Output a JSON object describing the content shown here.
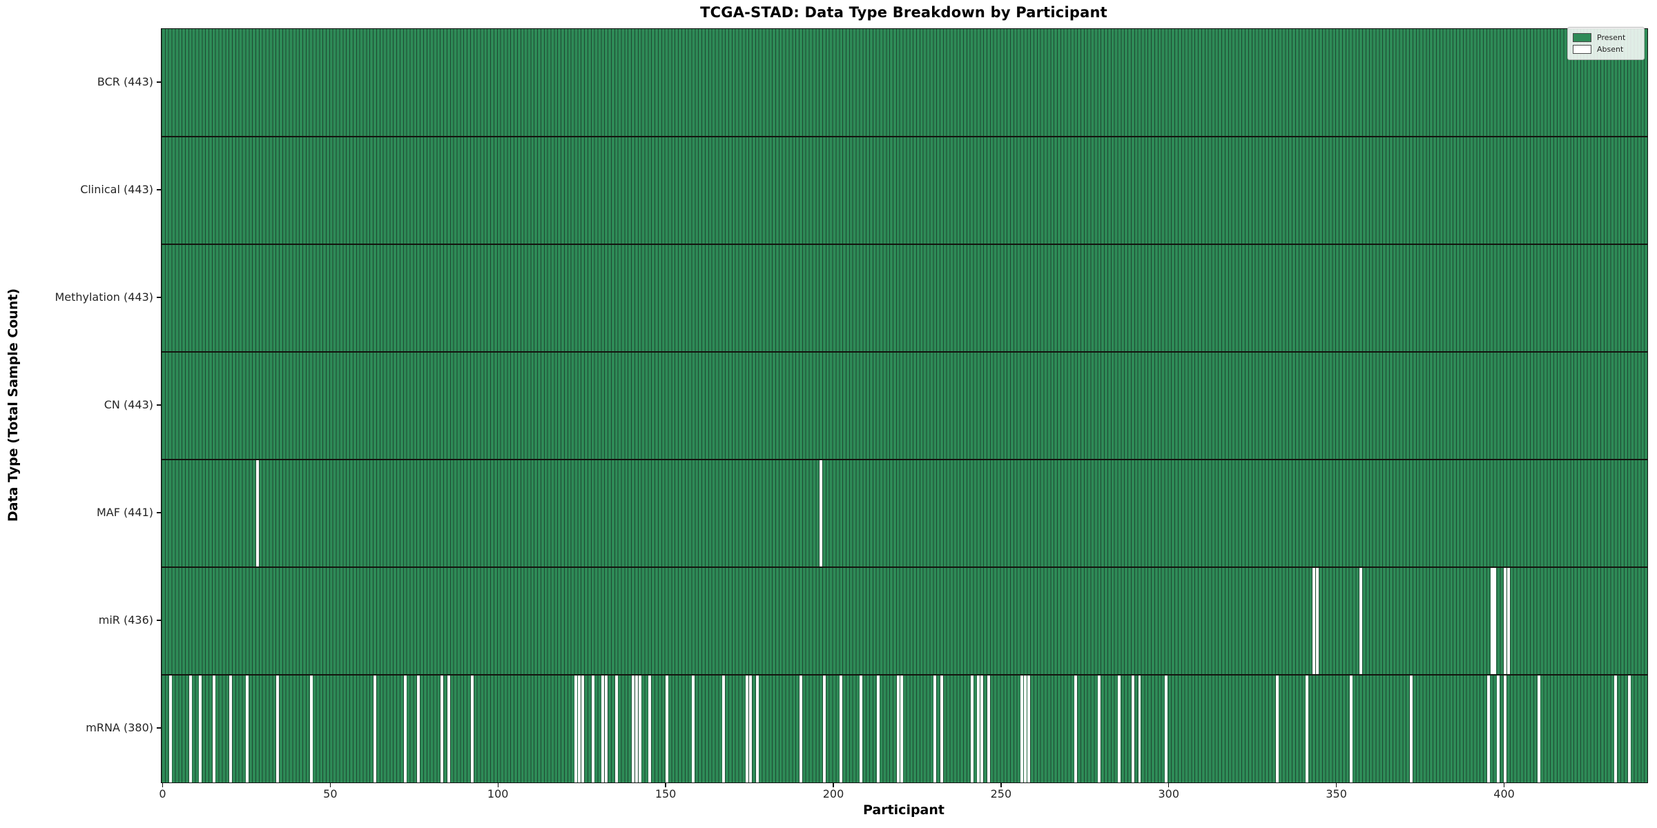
{
  "title": "TCGA-STAD: Data Type Breakdown by Participant",
  "x_axis_label": "Participant",
  "y_axis_label": "Data Type (Total Sample Count)",
  "legend": {
    "present_label": "Present",
    "absent_label": "Absent"
  },
  "colors": {
    "present": "#2e8b57",
    "absent": "#ffffff",
    "bar_edge": "#1d4731",
    "row_divider": "#14140f",
    "spine": "#111111",
    "background": "#ffffff",
    "legend_border": "#b5b5b5"
  },
  "chart_data": {
    "type": "heatmap",
    "subtype": "presence-absence-matrix",
    "title": "TCGA-STAD: Data Type Breakdown by Participant",
    "xlabel": "Participant",
    "ylabel": "Data Type (Total Sample Count)",
    "n_participants": 443,
    "x_range": [
      0,
      443
    ],
    "x_ticks": [
      0,
      50,
      100,
      150,
      200,
      250,
      300,
      350,
      400
    ],
    "grid": false,
    "legend_entries": [
      "Present",
      "Absent"
    ],
    "legend_position": "upper right",
    "rows": [
      {
        "key": "bcr",
        "label": "BCR (443)",
        "data_type": "BCR",
        "total": 443,
        "absent_participants": []
      },
      {
        "key": "clinical",
        "label": "Clinical (443)",
        "data_type": "Clinical",
        "total": 443,
        "absent_participants": []
      },
      {
        "key": "methylation",
        "label": "Methylation (443)",
        "data_type": "Methylation",
        "total": 443,
        "absent_participants": []
      },
      {
        "key": "cn",
        "label": "CN (443)",
        "data_type": "CN",
        "total": 443,
        "absent_participants": []
      },
      {
        "key": "maf",
        "label": "MAF (441)",
        "data_type": "MAF",
        "total": 441,
        "absent_participants": [
          28,
          196
        ]
      },
      {
        "key": "mir",
        "label": "miR (436)",
        "data_type": "miR",
        "total": 436,
        "absent_participants": [
          343,
          344,
          357,
          396,
          397,
          400,
          401
        ]
      },
      {
        "key": "mrna",
        "label": "mRNA (380)",
        "data_type": "mRNA",
        "total": 380,
        "absent_participants": [
          2,
          8,
          11,
          15,
          20,
          25,
          34,
          44,
          63,
          72,
          76,
          83,
          85,
          92,
          123,
          124,
          125,
          128,
          131,
          132,
          135,
          140,
          141,
          142,
          145,
          150,
          158,
          167,
          174,
          175,
          177,
          190,
          197,
          202,
          208,
          213,
          219,
          220,
          230,
          232,
          241,
          243,
          244,
          246,
          256,
          257,
          258,
          272,
          279,
          285,
          289,
          291,
          299,
          332,
          341,
          354,
          372,
          395,
          398,
          400,
          410,
          433,
          437
        ]
      }
    ]
  }
}
